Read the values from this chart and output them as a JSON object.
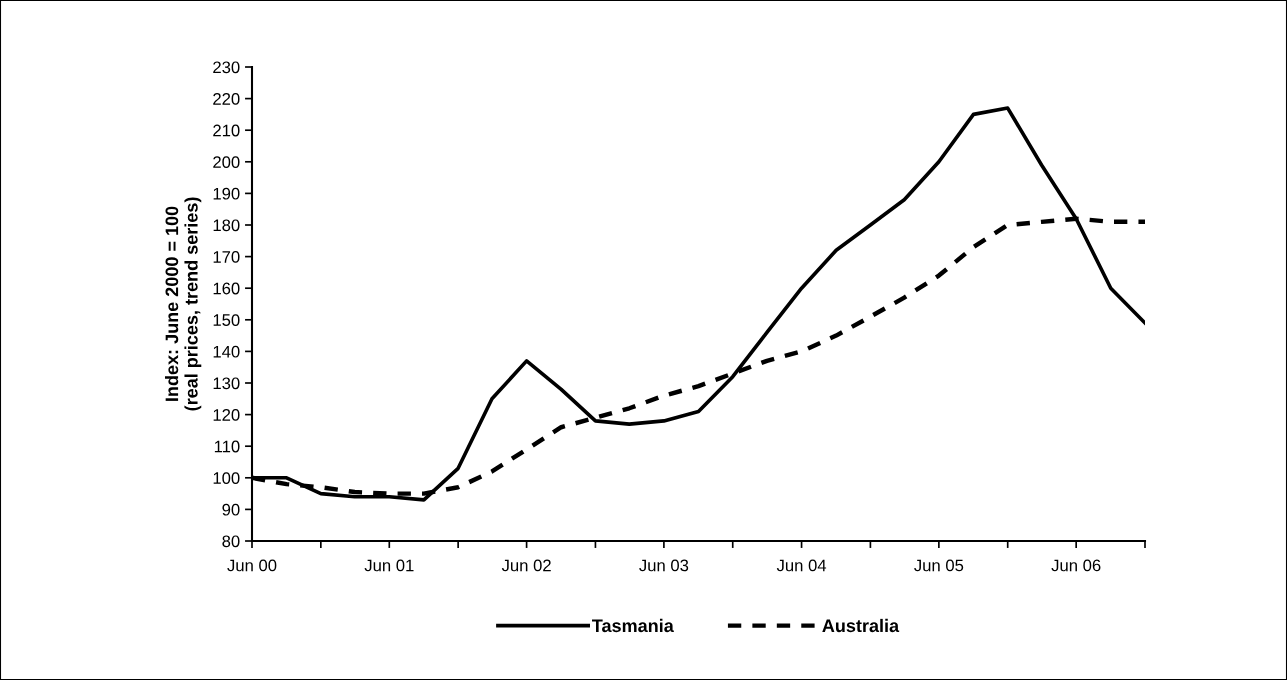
{
  "chart_data": {
    "type": "line",
    "ylabel": "Index: June 2000 = 100\n(real prices, trend series)",
    "x": [
      "2000-06",
      "2000-09",
      "2000-12",
      "2001-03",
      "2001-06",
      "2001-09",
      "2001-12",
      "2002-03",
      "2002-06",
      "2002-09",
      "2002-12",
      "2003-03",
      "2003-06",
      "2003-09",
      "2003-12",
      "2004-03",
      "2004-06",
      "2004-09",
      "2004-12",
      "2005-03",
      "2005-06",
      "2005-09",
      "2005-12",
      "2006-03",
      "2006-06",
      "2006-09",
      "2006-12"
    ],
    "series": [
      {
        "name": "Tasmania",
        "color": "#000000",
        "line_style": "solid",
        "values": [
          100,
          100,
          95,
          94,
          94,
          93,
          103,
          125,
          137,
          128,
          118,
          117,
          118,
          121,
          132,
          146,
          160,
          172,
          180,
          188,
          200,
          215,
          217,
          199,
          182,
          160,
          149
        ]
      },
      {
        "name": "Australia",
        "color": "#000000",
        "line_style": "dashed",
        "values": [
          100,
          98,
          97,
          95.5,
          95,
          95,
          97,
          102,
          109,
          116,
          119,
          122,
          126,
          129,
          133,
          137,
          140,
          145,
          151,
          157,
          164,
          173,
          180,
          181,
          182,
          181,
          181
        ]
      }
    ],
    "xlim": [
      "2000-06",
      "2006-12"
    ],
    "xticks": [
      {
        "value": "2000-06",
        "label": "Jun 00"
      },
      {
        "value": "2000-12",
        "label": null
      },
      {
        "value": "2001-06",
        "label": "Jun 01"
      },
      {
        "value": "2001-12",
        "label": null
      },
      {
        "value": "2002-06",
        "label": "Jun 02"
      },
      {
        "value": "2002-12",
        "label": null
      },
      {
        "value": "2003-06",
        "label": "Jun 03"
      },
      {
        "value": "2003-12",
        "label": null
      },
      {
        "value": "2004-06",
        "label": "Jun 04"
      },
      {
        "value": "2004-12",
        "label": null
      },
      {
        "value": "2005-06",
        "label": "Jun 05"
      },
      {
        "value": "2005-12",
        "label": null
      },
      {
        "value": "2006-06",
        "label": "Jun 06"
      },
      {
        "value": "2006-12",
        "label": null
      }
    ],
    "ylim": [
      80,
      230
    ],
    "yticks": [
      80,
      90,
      100,
      110,
      120,
      130,
      140,
      150,
      160,
      170,
      180,
      190,
      200,
      210,
      220,
      230
    ],
    "grid": false,
    "legend": "bottom",
    "marker": "none"
  }
}
